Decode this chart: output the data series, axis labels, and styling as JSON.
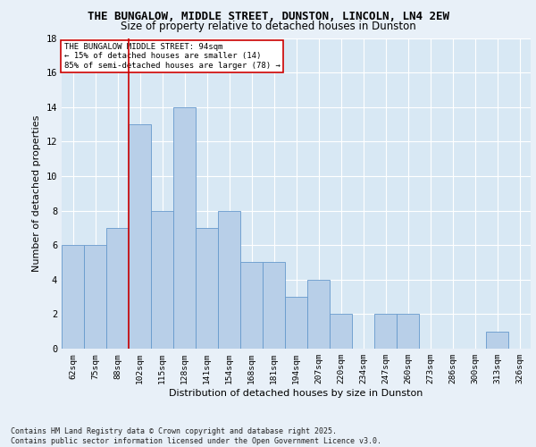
{
  "title1": "THE BUNGALOW, MIDDLE STREET, DUNSTON, LINCOLN, LN4 2EW",
  "title2": "Size of property relative to detached houses in Dunston",
  "xlabel": "Distribution of detached houses by size in Dunston",
  "ylabel": "Number of detached properties",
  "bar_labels": [
    "62sqm",
    "75sqm",
    "88sqm",
    "102sqm",
    "115sqm",
    "128sqm",
    "141sqm",
    "154sqm",
    "168sqm",
    "181sqm",
    "194sqm",
    "207sqm",
    "220sqm",
    "234sqm",
    "247sqm",
    "260sqm",
    "273sqm",
    "286sqm",
    "300sqm",
    "313sqm",
    "326sqm"
  ],
  "bar_values": [
    6,
    6,
    7,
    13,
    8,
    14,
    7,
    8,
    5,
    5,
    3,
    4,
    2,
    0,
    2,
    2,
    0,
    0,
    0,
    1,
    0
  ],
  "bar_color": "#b8cfe8",
  "bar_edge_color": "#6699cc",
  "ylim": [
    0,
    18
  ],
  "yticks": [
    0,
    2,
    4,
    6,
    8,
    10,
    12,
    14,
    16,
    18
  ],
  "annotation_line1": "THE BUNGALOW MIDDLE STREET: 94sqm",
  "annotation_line2": "← 15% of detached houses are smaller (14)",
  "annotation_line3": "85% of semi-detached houses are larger (78) →",
  "footer1": "Contains HM Land Registry data © Crown copyright and database right 2025.",
  "footer2": "Contains public sector information licensed under the Open Government Licence v3.0.",
  "bg_color": "#e8f0f8",
  "plot_bg_color": "#d8e8f4",
  "grid_color": "#ffffff",
  "ref_line_color": "#cc0000",
  "annotation_box_color": "#ffffff",
  "annotation_box_edge_color": "#cc0000",
  "ref_line_xindex": 2.5
}
